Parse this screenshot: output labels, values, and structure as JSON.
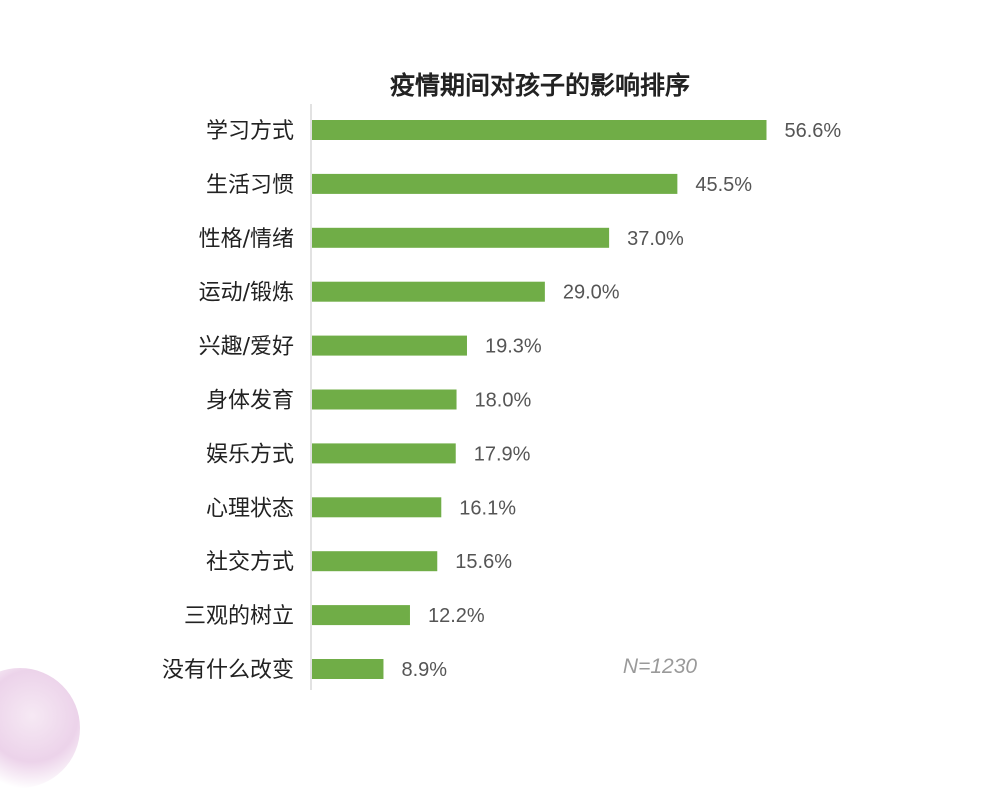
{
  "chart_data": {
    "type": "bar",
    "orientation": "horizontal",
    "title": "疫情期间对孩子的影响排序",
    "categories": [
      "学习方式",
      "生活习惯",
      "性格/情绪",
      "运动/锻炼",
      "兴趣/爱好",
      "身体发育",
      "娱乐方式",
      "心理状态",
      "社交方式",
      "三观的树立",
      "没有什么改变"
    ],
    "values": [
      56.6,
      45.5,
      37.0,
      29.0,
      19.3,
      18.0,
      17.9,
      16.1,
      15.6,
      12.2,
      8.9
    ],
    "value_labels": [
      "56.6%",
      "45.5%",
      "37.0%",
      "29.0%",
      "19.3%",
      "18.0%",
      "17.9%",
      "16.1%",
      "15.6%",
      "12.2%",
      "8.9%"
    ],
    "unit": "%",
    "note": "N=1230",
    "grid": false,
    "legend": "none",
    "color": "#70ad47"
  }
}
